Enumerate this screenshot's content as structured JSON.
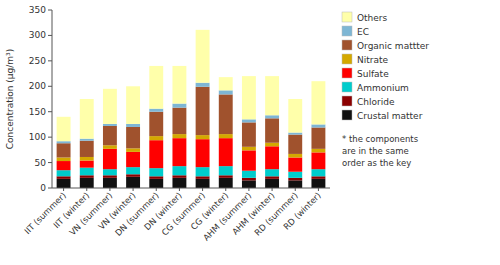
{
  "chart_data": {
    "type": "bar",
    "stacked": true,
    "legend": "right",
    "grid": false,
    "ylabel": "Concentration (μg/m³)",
    "categories": [
      "IIT (summer)",
      "IIT (winter)",
      "VN (summer)",
      "VN (winter)",
      "DN (summer)",
      "DN (winter)",
      "CG (summer)",
      "CG (winter)",
      "AHM (summer)",
      "AHM (winter)",
      "RD (summer)",
      "RD (winter)"
    ],
    "series": [
      {
        "name": "Crustal matter",
        "color": "#111111",
        "values": [
          18,
          20,
          20,
          22,
          18,
          20,
          18,
          20,
          15,
          18,
          15,
          18
        ]
      },
      {
        "name": "Chloride",
        "color": "#8B0000",
        "values": [
          5,
          5,
          5,
          5,
          5,
          5,
          5,
          5,
          5,
          5,
          5,
          5
        ]
      },
      {
        "name": "Ammonium",
        "color": "#00CCCC",
        "values": [
          12,
          15,
          12,
          14,
          16,
          18,
          18,
          18,
          14,
          14,
          12,
          14
        ]
      },
      {
        "name": "Sulfate",
        "color": "#FF0000",
        "values": [
          18,
          14,
          40,
          30,
          55,
          55,
          55,
          55,
          40,
          45,
          28,
          33
        ]
      },
      {
        "name": "Nitrate",
        "color": "#D4A800",
        "values": [
          7,
          7,
          7,
          7,
          8,
          8,
          8,
          8,
          7,
          7,
          7,
          7
        ]
      },
      {
        "name": "Organic mattter",
        "color": "#A0522D",
        "values": [
          28,
          32,
          38,
          42,
          48,
          52,
          95,
          78,
          48,
          48,
          38,
          42
        ]
      },
      {
        "name": "EC",
        "color": "#7EB6D4",
        "values": [
          4,
          4,
          4,
          6,
          6,
          8,
          8,
          8,
          6,
          6,
          4,
          6
        ]
      },
      {
        "name": "Others",
        "color": "#FFFFAA",
        "values": [
          48,
          78,
          69,
          74,
          84,
          74,
          104,
          26,
          85,
          77,
          66,
          85
        ]
      }
    ],
    "ylim": [
      0,
      350
    ],
    "yticks": [
      0,
      50,
      100,
      150,
      200,
      250,
      300,
      350
    ],
    "annotations": [
      "* the components\nare in the same\norder as the key"
    ]
  }
}
